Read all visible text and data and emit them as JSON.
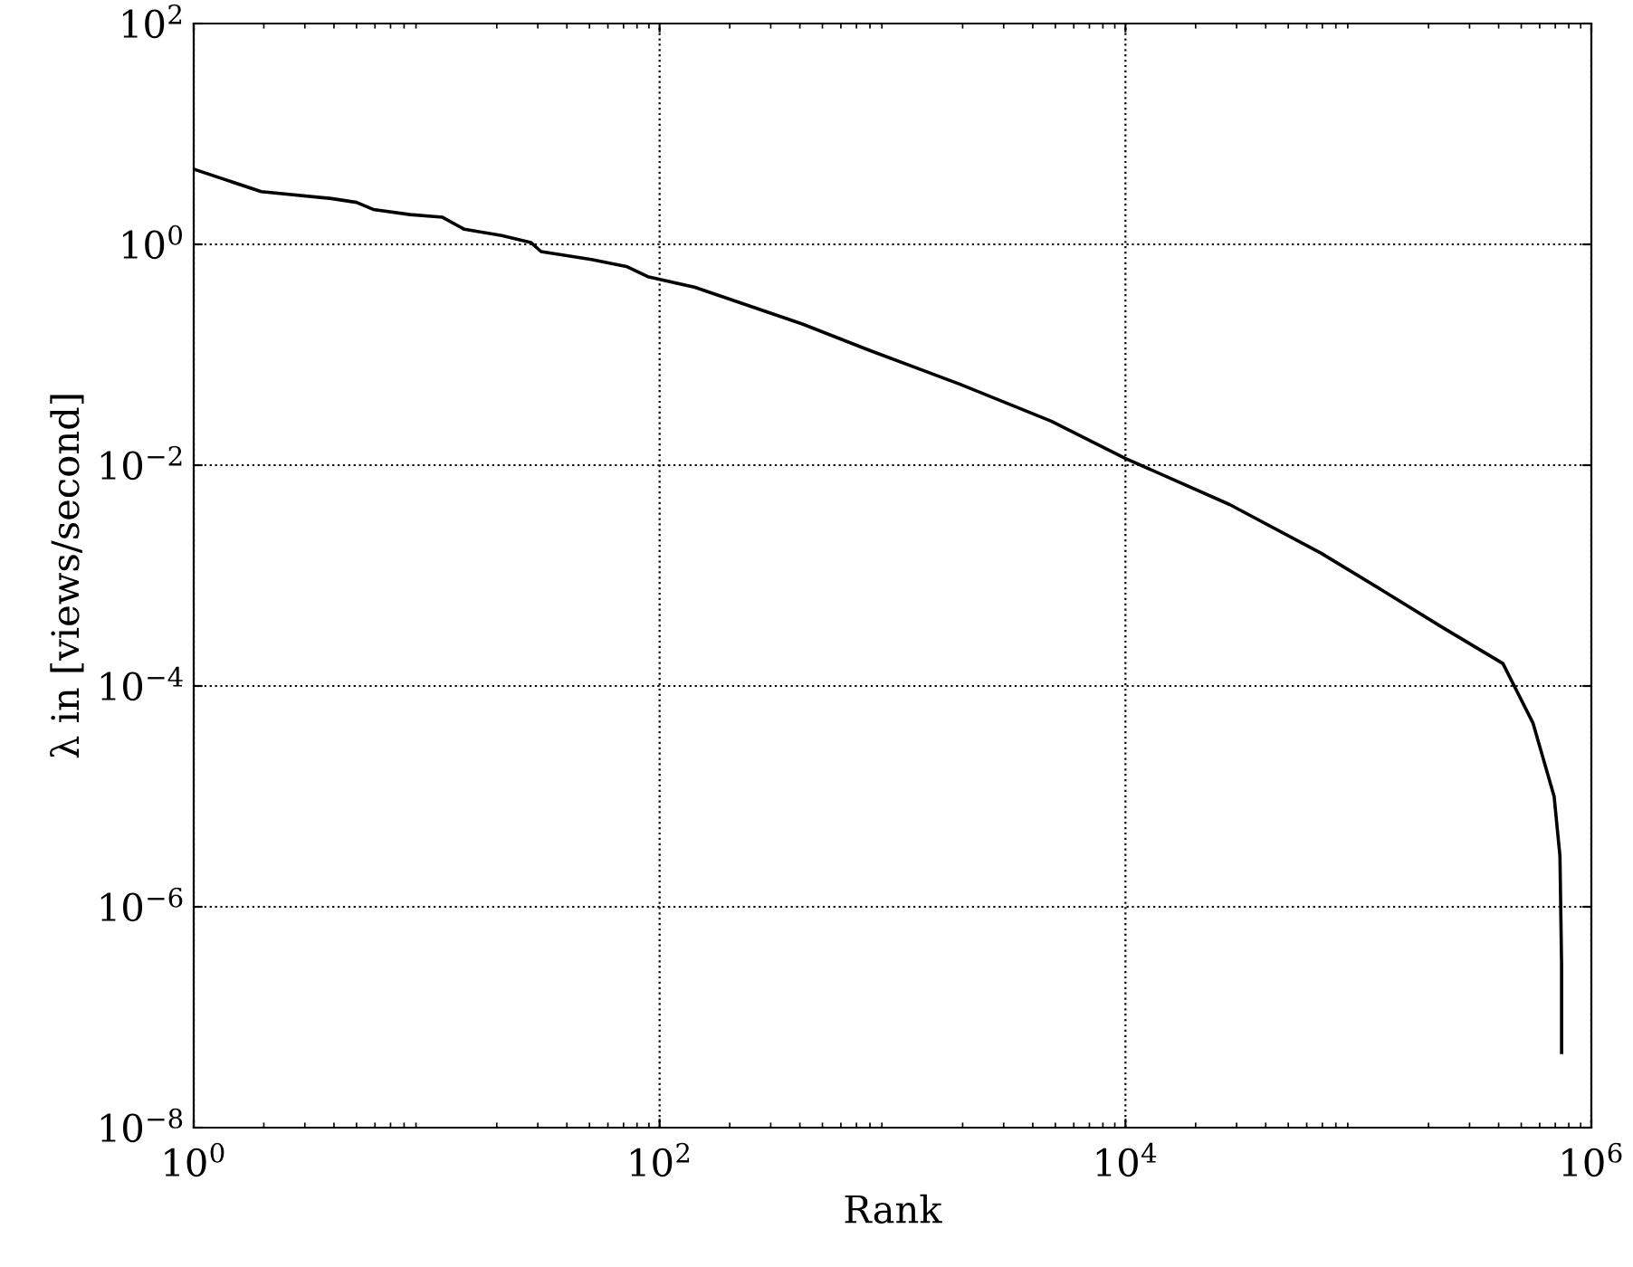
{
  "chart_data": {
    "type": "line",
    "xlabel": "Rank",
    "ylabel": "λ in [views/second]",
    "log": "xy",
    "grid": true,
    "line_style": "solid",
    "marker": "none",
    "xlim": [
      1,
      1000000
    ],
    "ylim": [
      1e-08,
      100
    ],
    "xticks": [
      {
        "value": 1,
        "label": "10$^{0}$"
      },
      {
        "value": 100,
        "label": "10$^{2}$"
      },
      {
        "value": 10000,
        "label": "10$^{4}$"
      },
      {
        "value": 1000000,
        "label": "10$^{6}$"
      }
    ],
    "yticks": [
      {
        "value": 1e-08,
        "label": "10$^{−8}$"
      },
      {
        "value": 1e-06,
        "label": "10$^{−6}$"
      },
      {
        "value": 0.0001,
        "label": "10$^{−4}$"
      },
      {
        "value": 0.01,
        "label": "10$^{−2}$"
      },
      {
        "value": 1,
        "label": "10$^{0}$"
      },
      {
        "value": 100,
        "label": "10$^{2}$"
      }
    ],
    "series": [
      {
        "color": "#000000",
        "x": [
          1,
          1.95,
          3.9,
          5.0,
          5.9,
          8.5,
          11.7,
          14.5,
          21,
          28,
          31,
          51,
          72,
          89,
          141,
          410,
          794,
          1950,
          4800,
          10000,
          28000,
          69000,
          126000,
          229000,
          417000,
          562000,
          692000,
          733000,
          745000,
          745000
        ],
        "values": [
          4.8,
          3.0,
          2.6,
          2.4,
          2.07,
          1.86,
          1.76,
          1.37,
          1.2,
          1.04,
          0.86,
          0.73,
          0.63,
          0.51,
          0.41,
          0.19,
          0.11,
          0.054,
          0.025,
          0.0115,
          0.0044,
          0.0016,
          0.00074,
          0.00034,
          0.00016,
          4.6e-05,
          1e-05,
          2.9e-06,
          3e-07,
          4.8e-08
        ]
      }
    ]
  }
}
